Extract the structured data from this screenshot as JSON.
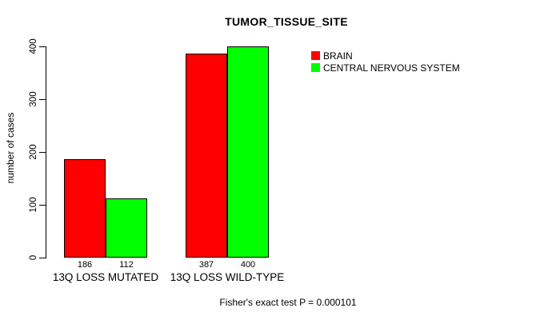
{
  "chart_data": {
    "type": "bar",
    "title": "TUMOR_TISSUE_SITE",
    "xlabel": "",
    "ylabel": "number of cases",
    "caption": "Fisher's exact test P = 0.000101",
    "categories": [
      "13Q LOSS MUTATED",
      "13Q LOSS WILD-TYPE"
    ],
    "series": [
      {
        "name": "BRAIN",
        "color": "#ff0000",
        "values": [
          186,
          387
        ]
      },
      {
        "name": "CENTRAL NERVOUS SYSTEM",
        "color": "#00ff00",
        "values": [
          112,
          400
        ]
      }
    ],
    "bar_value_labels": [
      [
        186,
        112
      ],
      [
        387,
        400
      ]
    ],
    "ylim": [
      0,
      400
    ],
    "yticks": [
      0,
      100,
      200,
      300,
      400
    ],
    "legend_position": "top-right",
    "grid": false,
    "colors": {
      "background": "#ffffff",
      "axis": "#000000",
      "text": "#000000",
      "bar_border": "#000000"
    }
  }
}
